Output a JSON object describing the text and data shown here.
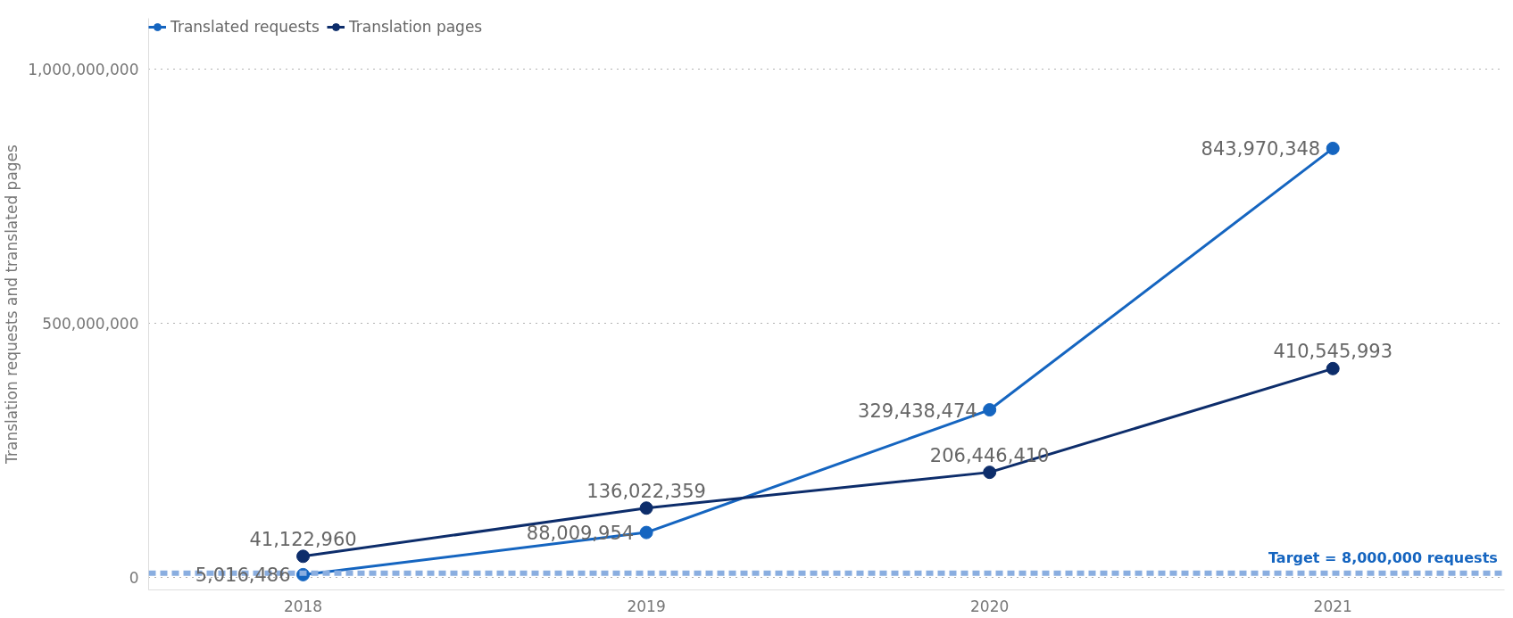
{
  "chart_data": {
    "type": "line",
    "categories": [
      "2018",
      "2019",
      "2020",
      "2021"
    ],
    "ylabel": "Translation requests and translated pages",
    "series": [
      {
        "name": "Translated requests",
        "color": "#1565c0",
        "values": [
          5016486,
          88009954,
          329438474,
          843970348
        ],
        "value_labels": [
          "5,016,486",
          "88,009,954",
          "329,438,474",
          "843,970,348"
        ]
      },
      {
        "name": "Translation pages",
        "color": "#0d2d6b",
        "values": [
          41122960,
          136022359,
          206446410,
          410545993
        ],
        "value_labels": [
          "41,122,960",
          "136,022,359",
          "206,446,410",
          "410,545,993"
        ]
      }
    ],
    "ylim": [
      -25000000,
      1100000000
    ],
    "yticks": [
      {
        "value": 0,
        "label": "0"
      },
      {
        "value": 500000000,
        "label": "500,000,000"
      },
      {
        "value": 1000000000,
        "label": "1,000,000,000"
      }
    ],
    "ref_lines": [
      {
        "axis": "y",
        "value": 8000000,
        "label": "Target = 8,000,000 requests",
        "color": "#8aaee0",
        "line_style": "dashed"
      }
    ],
    "grid": "y",
    "legend": "top left",
    "marker": "circle",
    "line_style": "solid"
  }
}
